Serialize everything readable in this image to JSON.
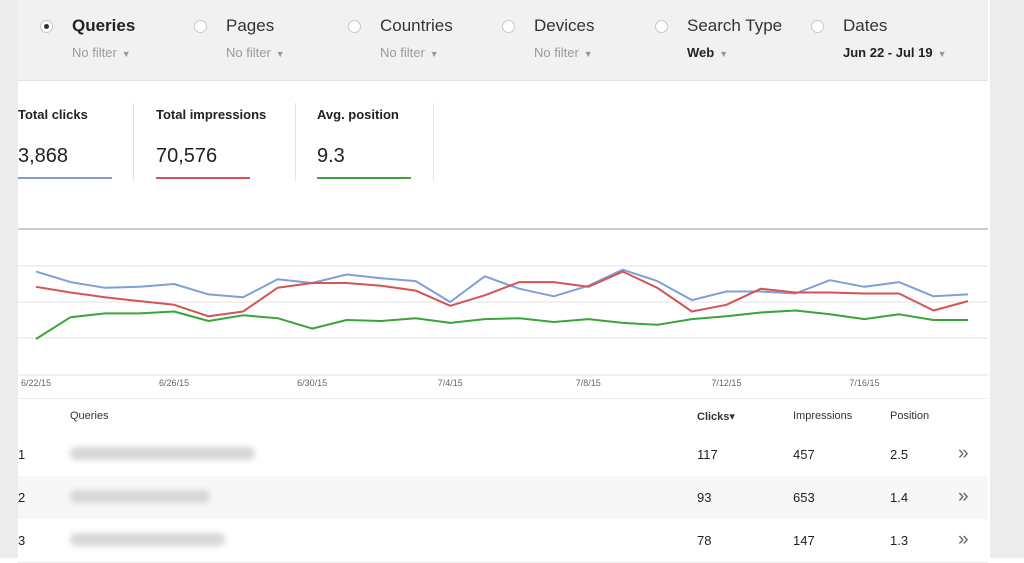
{
  "filters": [
    {
      "label": "Queries",
      "sub": "No filter",
      "checked": true,
      "sub_bold": false
    },
    {
      "label": "Pages",
      "sub": "No filter",
      "checked": false,
      "sub_bold": false
    },
    {
      "label": "Countries",
      "sub": "No filter",
      "checked": false,
      "sub_bold": false
    },
    {
      "label": "Devices",
      "sub": "No filter",
      "checked": false,
      "sub_bold": false
    },
    {
      "label": "Search Type",
      "sub": "Web",
      "checked": false,
      "sub_bold": true
    },
    {
      "label": "Dates",
      "sub": "Jun 22 - Jul 19",
      "checked": false,
      "sub_bold": true
    }
  ],
  "metrics": [
    {
      "title": "Total clicks",
      "value": "3,868",
      "color": "#7f9fd9"
    },
    {
      "title": "Total impressions",
      "value": "70,576",
      "color": "#d45456"
    },
    {
      "title": "Avg. position",
      "value": "9.3",
      "color": "#3aa43a"
    }
  ],
  "chart_data": {
    "type": "line",
    "x": [
      "6/22/15",
      "6/23/15",
      "6/24/15",
      "6/25/15",
      "6/26/15",
      "6/27/15",
      "6/28/15",
      "6/29/15",
      "6/30/15",
      "7/1/15",
      "7/2/15",
      "7/3/15",
      "7/4/15",
      "7/5/15",
      "7/6/15",
      "7/7/15",
      "7/8/15",
      "7/9/15",
      "7/10/15",
      "7/11/15",
      "7/12/15",
      "7/13/15",
      "7/14/15",
      "7/15/15",
      "7/16/15",
      "7/17/15",
      "7/18/15",
      "7/19/15"
    ],
    "tick_labels": [
      "6/22/15",
      "6/26/15",
      "6/30/15",
      "7/4/15",
      "7/8/15",
      "7/12/15",
      "7/16/15"
    ],
    "series": [
      {
        "name": "Total clicks",
        "color": "#7f9fd9",
        "values": [
          0.72,
          0.61,
          0.55,
          0.56,
          0.59,
          0.48,
          0.45,
          0.64,
          0.6,
          0.69,
          0.65,
          0.62,
          0.4,
          0.67,
          0.54,
          0.46,
          0.57,
          0.74,
          0.62,
          0.42,
          0.51,
          0.51,
          0.49,
          0.63,
          0.56,
          0.61,
          0.46,
          0.48
        ]
      },
      {
        "name": "Total impressions",
        "color": "#d45456",
        "values": [
          0.56,
          0.5,
          0.45,
          0.41,
          0.37,
          0.25,
          0.3,
          0.55,
          0.6,
          0.6,
          0.57,
          0.52,
          0.36,
          0.47,
          0.61,
          0.61,
          0.56,
          0.72,
          0.55,
          0.3,
          0.37,
          0.54,
          0.5,
          0.5,
          0.49,
          0.49,
          0.31,
          0.41
        ]
      },
      {
        "name": "Avg. position",
        "color": "#3aa43a",
        "values": [
          0.01,
          0.24,
          0.28,
          0.28,
          0.3,
          0.2,
          0.26,
          0.23,
          0.12,
          0.21,
          0.2,
          0.23,
          0.18,
          0.22,
          0.23,
          0.19,
          0.22,
          0.18,
          0.16,
          0.22,
          0.25,
          0.29,
          0.31,
          0.27,
          0.22,
          0.27,
          0.21,
          0.21
        ]
      }
    ],
    "ylim": [
      0,
      1
    ],
    "grid": true,
    "legend": "none"
  },
  "table": {
    "headers": {
      "queries": "Queries",
      "clicks": "Clicks▾",
      "impressions": "Impressions",
      "position": "Position"
    },
    "rows": [
      {
        "rank": "1",
        "clicks": "117",
        "impressions": "457",
        "position": "2.5"
      },
      {
        "rank": "2",
        "clicks": "93",
        "impressions": "653",
        "position": "1.4"
      },
      {
        "rank": "3",
        "clicks": "78",
        "impressions": "147",
        "position": "1.3"
      }
    ],
    "expand_icon": "»"
  }
}
